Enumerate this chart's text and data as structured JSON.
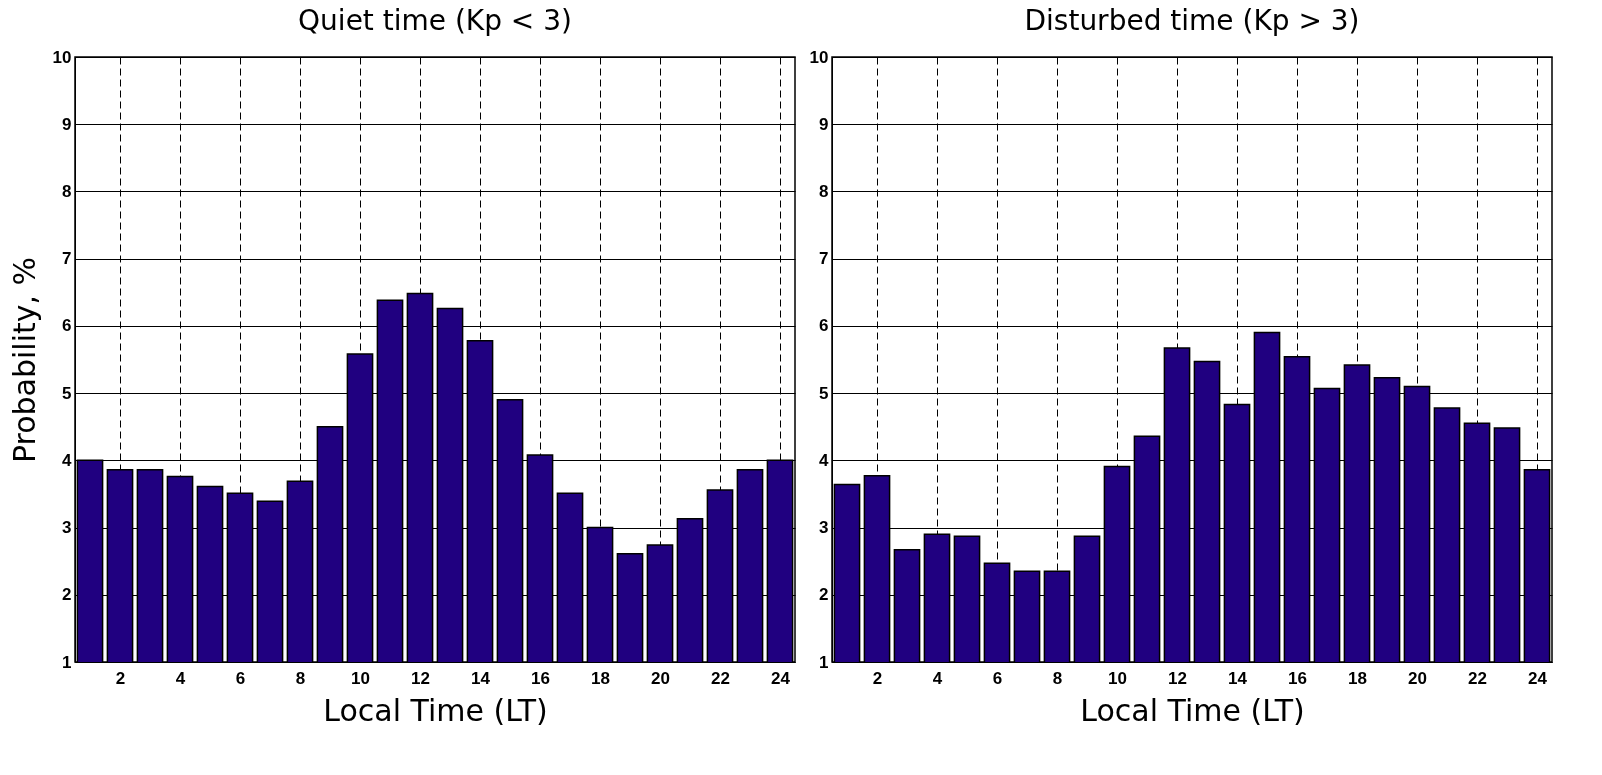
{
  "chart_data": [
    {
      "type": "bar",
      "title": "Quiet time (Kp < 3)",
      "xlabel": "Local Time (LT)",
      "ylabel": "Probability, %",
      "x": [
        1,
        2,
        3,
        4,
        5,
        6,
        7,
        8,
        9,
        10,
        11,
        12,
        13,
        14,
        15,
        16,
        17,
        18,
        19,
        20,
        21,
        22,
        23,
        24
      ],
      "series": [
        {
          "color": "#200080",
          "values": [
            4.0,
            3.86,
            3.86,
            3.76,
            3.61,
            3.51,
            3.39,
            3.69,
            4.5,
            5.58,
            6.38,
            6.48,
            6.26,
            5.78,
            4.9,
            4.08,
            3.51,
            3.0,
            2.61,
            2.74,
            3.13,
            3.56,
            3.86,
            4.0
          ]
        }
      ],
      "xlim": [
        0.5,
        24.5
      ],
      "xticks": [
        2,
        4,
        6,
        8,
        10,
        12,
        14,
        16,
        18,
        20,
        22,
        24
      ],
      "ylim": [
        1,
        10
      ],
      "yticks": [
        1,
        2,
        3,
        4,
        5,
        6,
        7,
        8,
        9,
        10
      ],
      "grid": true
    },
    {
      "type": "bar",
      "title": "Disturbed time (Kp > 3)",
      "xlabel": "Local Time (LT)",
      "x": [
        1,
        2,
        3,
        4,
        5,
        6,
        7,
        8,
        9,
        10,
        11,
        12,
        13,
        14,
        15,
        16,
        17,
        18,
        19,
        20,
        21,
        22,
        23,
        24
      ],
      "series": [
        {
          "color": "#200080",
          "values": [
            3.64,
            3.77,
            2.67,
            2.9,
            2.87,
            2.47,
            2.35,
            2.35,
            2.87,
            3.91,
            4.36,
            5.67,
            5.47,
            4.83,
            5.9,
            5.54,
            5.07,
            5.42,
            5.23,
            5.1,
            4.78,
            4.55,
            4.48,
            3.86
          ]
        }
      ],
      "xlim": [
        0.5,
        24.5
      ],
      "xticks": [
        2,
        4,
        6,
        8,
        10,
        12,
        14,
        16,
        18,
        20,
        22,
        24
      ],
      "ylim": [
        1,
        10
      ],
      "yticks": [
        1,
        2,
        3,
        4,
        5,
        6,
        7,
        8,
        9,
        10
      ],
      "grid": true
    }
  ]
}
